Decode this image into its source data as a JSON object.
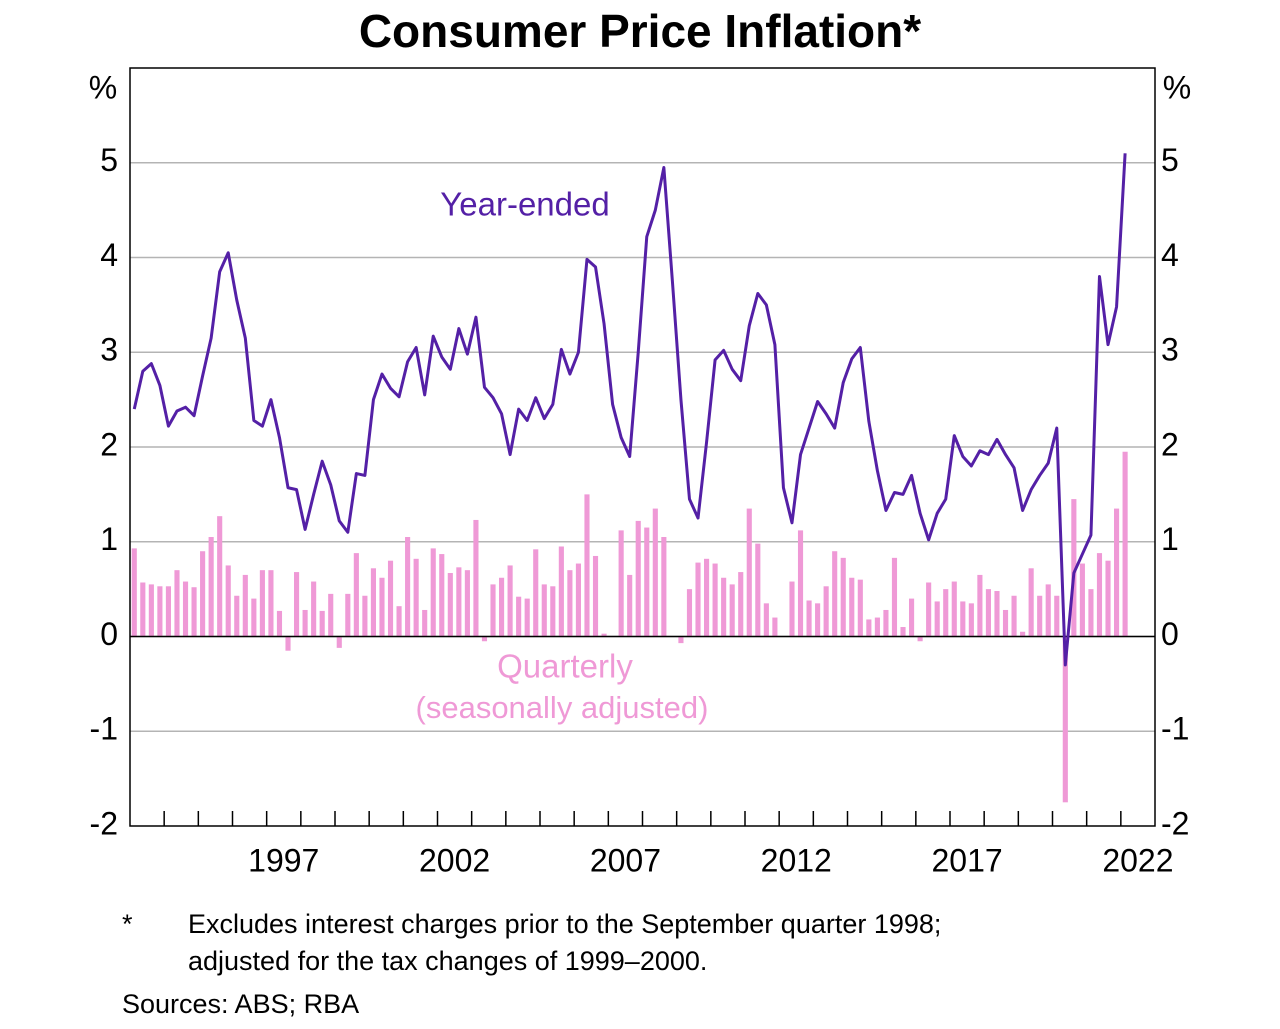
{
  "chart_data": {
    "type": "bar_line",
    "title": "Consumer Price Inflation*",
    "y_unit_left": "%",
    "y_unit_right": "%",
    "annotations": {
      "line": "Year-ended",
      "bars": "Quarterly",
      "bars_note": "(seasonally adjusted)"
    },
    "footnote_marker": "*",
    "footnote": [
      "Excludes interest charges prior to the September quarter 1998;",
      "adjusted for the tax changes of 1999–2000."
    ],
    "sources": "Sources: ABS; RBA",
    "xlim": [
      1993,
      2023
    ],
    "xticks": [
      1994,
      1995,
      1996,
      1997,
      1998,
      1999,
      2000,
      2001,
      2002,
      2003,
      2004,
      2005,
      2006,
      2007,
      2008,
      2009,
      2010,
      2011,
      2012,
      2013,
      2014,
      2015,
      2016,
      2017,
      2018,
      2019,
      2020,
      2021,
      2022
    ],
    "year_labels": [
      1997,
      2002,
      2007,
      2012,
      2017,
      2022
    ],
    "ylim": [
      -2,
      6
    ],
    "yticks": [
      -2,
      -1,
      0,
      1,
      2,
      3,
      4,
      5
    ],
    "grid": true,
    "x": [
      1993.125,
      1993.375,
      1993.625,
      1993.875,
      1994.125,
      1994.375,
      1994.625,
      1994.875,
      1995.125,
      1995.375,
      1995.625,
      1995.875,
      1996.125,
      1996.375,
      1996.625,
      1996.875,
      1997.125,
      1997.375,
      1997.625,
      1997.875,
      1998.125,
      1998.375,
      1998.625,
      1998.875,
      1999.125,
      1999.375,
      1999.625,
      1999.875,
      2000.125,
      2000.375,
      2000.625,
      2000.875,
      2001.125,
      2001.375,
      2001.625,
      2001.875,
      2002.125,
      2002.375,
      2002.625,
      2002.875,
      2003.125,
      2003.375,
      2003.625,
      2003.875,
      2004.125,
      2004.375,
      2004.625,
      2004.875,
      2005.125,
      2005.375,
      2005.625,
      2005.875,
      2006.125,
      2006.375,
      2006.625,
      2006.875,
      2007.125,
      2007.375,
      2007.625,
      2007.875,
      2008.125,
      2008.375,
      2008.625,
      2008.875,
      2009.125,
      2009.375,
      2009.625,
      2009.875,
      2010.125,
      2010.375,
      2010.625,
      2010.875,
      2011.125,
      2011.375,
      2011.625,
      2011.875,
      2012.125,
      2012.375,
      2012.625,
      2012.875,
      2013.125,
      2013.375,
      2013.625,
      2013.875,
      2014.125,
      2014.375,
      2014.625,
      2014.875,
      2015.125,
      2015.375,
      2015.625,
      2015.875,
      2016.125,
      2016.375,
      2016.625,
      2016.875,
      2017.125,
      2017.375,
      2017.625,
      2017.875,
      2018.125,
      2018.375,
      2018.625,
      2018.875,
      2019.125,
      2019.375,
      2019.625,
      2019.875,
      2020.125,
      2020.375,
      2020.625,
      2020.875,
      2021.125,
      2021.375,
      2021.625,
      2021.875,
      2022.125
    ],
    "series": [
      {
        "name": "Quarterly",
        "kind": "bar",
        "color": "#ef99d6",
        "values": [
          0.93,
          0.57,
          0.55,
          0.53,
          0.53,
          0.7,
          0.58,
          0.52,
          0.9,
          1.05,
          1.27,
          0.75,
          0.43,
          0.65,
          0.4,
          0.7,
          0.7,
          0.27,
          -0.15,
          0.68,
          0.28,
          0.58,
          0.27,
          0.45,
          -0.12,
          0.45,
          0.88,
          0.43,
          0.72,
          0.62,
          0.8,
          0.32,
          1.05,
          0.82,
          0.28,
          0.93,
          0.87,
          0.67,
          0.73,
          0.7,
          1.23,
          -0.05,
          0.55,
          0.62,
          0.75,
          0.42,
          0.4,
          0.92,
          0.55,
          0.53,
          0.95,
          0.7,
          0.77,
          1.5,
          0.85,
          0.03,
          0.0,
          1.12,
          0.65,
          1.22,
          1.15,
          1.35,
          1.05,
          0.0,
          -0.07,
          0.5,
          0.78,
          0.82,
          0.77,
          0.62,
          0.55,
          0.68,
          1.35,
          0.98,
          0.35,
          0.2,
          0.0,
          0.58,
          1.12,
          0.38,
          0.35,
          0.53,
          0.9,
          0.83,
          0.62,
          0.6,
          0.18,
          0.2,
          0.28,
          0.83,
          0.1,
          0.4,
          -0.05,
          0.57,
          0.37,
          0.5,
          0.58,
          0.37,
          0.35,
          0.65,
          0.5,
          0.48,
          0.28,
          0.43,
          0.05,
          0.72,
          0.43,
          0.55,
          0.43,
          -1.75,
          1.45,
          0.77,
          0.5,
          0.88,
          0.8,
          1.35,
          1.95
        ]
      },
      {
        "name": "Year-ended",
        "kind": "line",
        "color": "#5420a6",
        "values": [
          2.4,
          2.8,
          2.88,
          2.65,
          2.22,
          2.38,
          2.42,
          2.33,
          2.75,
          3.15,
          3.85,
          4.05,
          3.55,
          3.15,
          2.28,
          2.22,
          2.5,
          2.1,
          1.57,
          1.55,
          1.13,
          1.5,
          1.85,
          1.6,
          1.22,
          1.1,
          1.72,
          1.7,
          2.5,
          2.77,
          2.62,
          2.53,
          2.9,
          3.05,
          2.55,
          3.17,
          2.95,
          2.82,
          3.25,
          2.98,
          3.37,
          2.63,
          2.52,
          2.35,
          1.92,
          2.4,
          2.28,
          2.52,
          2.3,
          2.45,
          3.03,
          2.77,
          3.0,
          3.98,
          3.9,
          3.3,
          2.45,
          2.1,
          1.9,
          3.0,
          4.22,
          4.5,
          4.95,
          3.75,
          2.5,
          1.45,
          1.25,
          2.05,
          2.92,
          3.02,
          2.82,
          2.7,
          3.28,
          3.62,
          3.5,
          3.08,
          1.57,
          1.2,
          1.92,
          2.2,
          2.48,
          2.35,
          2.2,
          2.68,
          2.93,
          3.05,
          2.27,
          1.75,
          1.33,
          1.52,
          1.5,
          1.7,
          1.3,
          1.02,
          1.3,
          1.45,
          2.12,
          1.9,
          1.8,
          1.96,
          1.92,
          2.08,
          1.92,
          1.78,
          1.33,
          1.55,
          1.7,
          1.83,
          2.2,
          -0.3,
          0.67,
          0.87,
          1.07,
          3.8,
          3.08,
          3.48,
          5.1
        ]
      }
    ]
  }
}
